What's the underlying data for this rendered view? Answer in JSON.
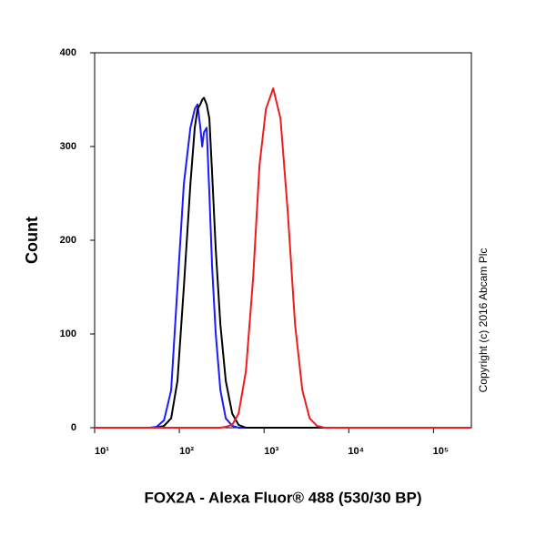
{
  "chart_data": {
    "type": "line",
    "x_label": "FOX2A - Alexa Fluor® 488 (530/30 BP)",
    "y_label": "Count",
    "annotation": "Copyright (c) 2016 Abcam Plc",
    "xscale": "log",
    "xlim": [
      10,
      280000
    ],
    "ylim": [
      0,
      400
    ],
    "xticks": [
      {
        "value": 10,
        "label": "10¹"
      },
      {
        "value": 100,
        "label": "10²"
      },
      {
        "value": 1000,
        "label": "10³"
      },
      {
        "value": 10000,
        "label": "10⁴"
      },
      {
        "value": 100000,
        "label": "10⁵"
      }
    ],
    "yticks": [
      0,
      100,
      200,
      300,
      400
    ],
    "grid": false,
    "x": [
      10,
      45,
      54,
      66,
      80,
      95,
      113,
      135,
      152,
      164,
      177,
      186,
      195,
      210,
      226,
      244,
      269,
      305,
      353,
      421,
      500,
      610,
      743,
      883,
      1052,
      1282,
      1563,
      1905,
      2323,
      2831,
      3451,
      4207,
      5129,
      6397,
      280000
    ],
    "series": [
      {
        "color": "#1a1aff",
        "values": [
          0,
          0,
          1,
          8,
          40,
          150,
          260,
          320,
          340,
          345,
          320,
          300,
          315,
          320,
          250,
          170,
          100,
          40,
          10,
          2,
          0,
          0,
          0,
          0,
          0,
          0,
          0,
          0,
          0,
          0,
          0,
          0,
          0,
          0,
          0
        ]
      },
      {
        "color": "#000000",
        "values": [
          0,
          0,
          0,
          2,
          10,
          50,
          150,
          260,
          320,
          340,
          345,
          350,
          352,
          345,
          330,
          270,
          190,
          110,
          50,
          15,
          3,
          0,
          0,
          0,
          0,
          0,
          0,
          0,
          0,
          0,
          0,
          0,
          0,
          0,
          0
        ]
      },
      {
        "color": "#ee1c1c",
        "values": [
          0,
          0,
          0,
          0,
          0,
          0,
          0,
          0,
          0,
          0,
          0,
          0,
          0,
          0,
          0,
          0,
          0,
          0,
          1,
          3,
          15,
          60,
          160,
          280,
          340,
          362,
          330,
          230,
          110,
          40,
          10,
          2,
          0,
          0,
          0
        ]
      }
    ]
  }
}
